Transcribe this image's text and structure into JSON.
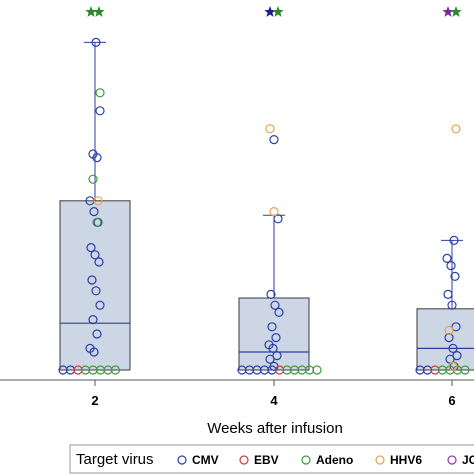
{
  "chart_data": {
    "type": "scatter",
    "subtype": "box-plot-with-jittered-points",
    "xlabel": "Weeks after infusion",
    "categories": [
      "2",
      "4",
      "6"
    ],
    "y_scale": "linear",
    "ylim": [
      0,
      100
    ],
    "y_tick_labels_visible": false,
    "grid": false,
    "boxes": [
      {
        "category": "2",
        "min": 0,
        "q1": 0,
        "median": 13,
        "q3": 47,
        "max": 91
      },
      {
        "category": "4",
        "min": 0,
        "q1": 0,
        "median": 5,
        "q3": 20,
        "max": 43
      },
      {
        "category": "6",
        "min": 0,
        "q1": 0,
        "median": 6,
        "q3": 17,
        "max": 36
      }
    ],
    "significance_stars": [
      {
        "category": "2",
        "colors": [
          "#2a8a2a",
          "#2a8a2a"
        ]
      },
      {
        "category": "4",
        "colors": [
          "#1c1c8c",
          "#2a8a2a"
        ]
      },
      {
        "category": "6",
        "colors": [
          "#7a2a9c",
          "#2a8a2a"
        ]
      }
    ],
    "series": [
      {
        "name": "CMV",
        "color": "#2b3ea8",
        "points": [
          {
            "x": "2",
            "y": 91
          },
          {
            "x": "2",
            "y": 72
          },
          {
            "x": "2",
            "y": 60
          },
          {
            "x": "2",
            "y": 59
          },
          {
            "x": "2",
            "y": 47
          },
          {
            "x": "2",
            "y": 44
          },
          {
            "x": "2",
            "y": 41
          },
          {
            "x": "2",
            "y": 34
          },
          {
            "x": "2",
            "y": 32
          },
          {
            "x": "2",
            "y": 30
          },
          {
            "x": "2",
            "y": 25
          },
          {
            "x": "2",
            "y": 22
          },
          {
            "x": "2",
            "y": 18
          },
          {
            "x": "2",
            "y": 14
          },
          {
            "x": "2",
            "y": 10
          },
          {
            "x": "2",
            "y": 6
          },
          {
            "x": "2",
            "y": 5
          },
          {
            "x": "2",
            "y": 0
          },
          {
            "x": "2",
            "y": 0
          },
          {
            "x": "4",
            "y": 64
          },
          {
            "x": "4",
            "y": 42
          },
          {
            "x": "4",
            "y": 21
          },
          {
            "x": "4",
            "y": 18
          },
          {
            "x": "4",
            "y": 16
          },
          {
            "x": "4",
            "y": 12
          },
          {
            "x": "4",
            "y": 9
          },
          {
            "x": "4",
            "y": 7
          },
          {
            "x": "4",
            "y": 6
          },
          {
            "x": "4",
            "y": 4
          },
          {
            "x": "4",
            "y": 3
          },
          {
            "x": "4",
            "y": 1
          },
          {
            "x": "4",
            "y": 0
          },
          {
            "x": "4",
            "y": 0
          },
          {
            "x": "4",
            "y": 0
          },
          {
            "x": "4",
            "y": 0
          },
          {
            "x": "4",
            "y": 0
          },
          {
            "x": "6",
            "y": 36
          },
          {
            "x": "6",
            "y": 31
          },
          {
            "x": "6",
            "y": 29
          },
          {
            "x": "6",
            "y": 26
          },
          {
            "x": "6",
            "y": 21
          },
          {
            "x": "6",
            "y": 18
          },
          {
            "x": "6",
            "y": 12
          },
          {
            "x": "6",
            "y": 9
          },
          {
            "x": "6",
            "y": 6
          },
          {
            "x": "6",
            "y": 4
          },
          {
            "x": "6",
            "y": 3
          },
          {
            "x": "6",
            "y": 1
          },
          {
            "x": "6",
            "y": 0
          },
          {
            "x": "6",
            "y": 0
          }
        ]
      },
      {
        "name": "EBV",
        "color": "#cc3a3a",
        "points": [
          {
            "x": "2",
            "y": 0
          },
          {
            "x": "4",
            "y": 0
          },
          {
            "x": "6",
            "y": 0
          }
        ]
      },
      {
        "name": "Adeno",
        "color": "#3d9a3d",
        "points": [
          {
            "x": "2",
            "y": 77
          },
          {
            "x": "2",
            "y": 53
          },
          {
            "x": "2",
            "y": 41
          },
          {
            "x": "2",
            "y": 0
          },
          {
            "x": "2",
            "y": 0
          },
          {
            "x": "2",
            "y": 0
          },
          {
            "x": "2",
            "y": 0
          },
          {
            "x": "2",
            "y": 0
          },
          {
            "x": "4",
            "y": 0
          },
          {
            "x": "4",
            "y": 0
          },
          {
            "x": "4",
            "y": 0
          },
          {
            "x": "4",
            "y": 0
          },
          {
            "x": "4",
            "y": 0
          },
          {
            "x": "6",
            "y": 0
          },
          {
            "x": "6",
            "y": 0
          },
          {
            "x": "6",
            "y": 0
          },
          {
            "x": "6",
            "y": 0
          }
        ]
      },
      {
        "name": "HHV6",
        "color": "#e8a24a",
        "points": [
          {
            "x": "2",
            "y": 47
          },
          {
            "x": "4",
            "y": 67
          },
          {
            "x": "4",
            "y": 44
          },
          {
            "x": "6",
            "y": 67
          },
          {
            "x": "6",
            "y": 11
          },
          {
            "x": "6",
            "y": 1
          }
        ]
      },
      {
        "name": "JCV",
        "color": "#8a3aa8",
        "points": []
      }
    ],
    "legend": {
      "title": "Target virus",
      "position": "bottom",
      "entries": [
        {
          "label": "CMV",
          "color": "#2b3ea8"
        },
        {
          "label": "EBV",
          "color": "#cc3a3a"
        },
        {
          "label": "Adeno",
          "color": "#3d9a3d"
        },
        {
          "label": "HHV6",
          "color": "#e8a24a"
        },
        {
          "label": "JCV",
          "color": "#8a3aa8"
        }
      ]
    }
  }
}
